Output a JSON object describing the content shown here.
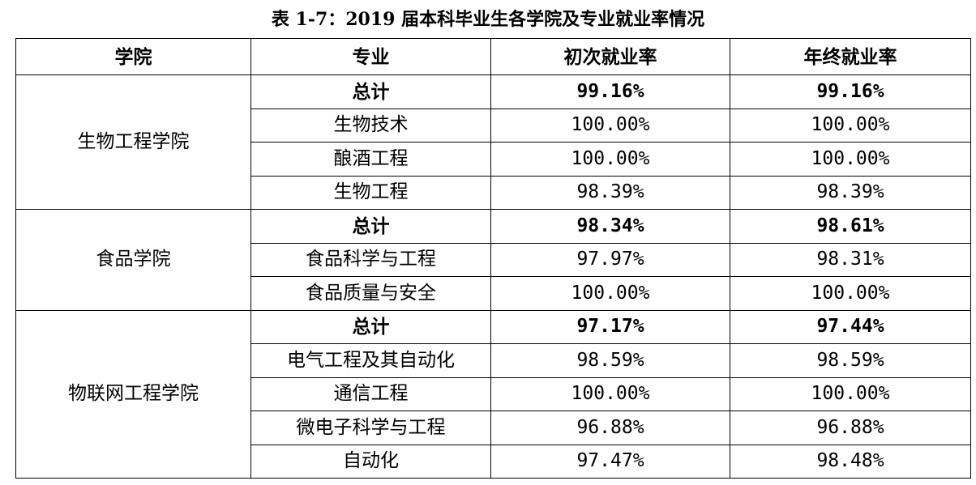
{
  "caption": "表 1-7：2019 届本科毕业生各学院及专业就业率情况",
  "headers": {
    "college": "学院",
    "major": "专业",
    "initial_rate": "初次就业率",
    "final_rate": "年终就业率"
  },
  "groups": [
    {
      "college": "生物工程学院",
      "rows": [
        {
          "major": "总计",
          "initial": "99.16%",
          "final": "99.16%",
          "total": true
        },
        {
          "major": "生物技术",
          "initial": "100.00%",
          "final": "100.00%"
        },
        {
          "major": "酿酒工程",
          "initial": "100.00%",
          "final": "100.00%"
        },
        {
          "major": "生物工程",
          "initial": "98.39%",
          "final": "98.39%"
        }
      ]
    },
    {
      "college": "食品学院",
      "rows": [
        {
          "major": "总计",
          "initial": "98.34%",
          "final": "98.61%",
          "total": true
        },
        {
          "major": "食品科学与工程",
          "initial": "97.97%",
          "final": "98.31%"
        },
        {
          "major": "食品质量与安全",
          "initial": "100.00%",
          "final": "100.00%"
        }
      ]
    },
    {
      "college": "物联网工程学院",
      "rows": [
        {
          "major": "总计",
          "initial": "97.17%",
          "final": "97.44%",
          "total": true
        },
        {
          "major": "电气工程及其自动化",
          "initial": "98.59%",
          "final": "98.59%"
        },
        {
          "major": "通信工程",
          "initial": "100.00%",
          "final": "100.00%"
        },
        {
          "major": "微电子科学与工程",
          "initial": "96.88%",
          "final": "96.88%"
        },
        {
          "major": "自动化",
          "initial": "97.47%",
          "final": "98.48%"
        }
      ]
    }
  ]
}
